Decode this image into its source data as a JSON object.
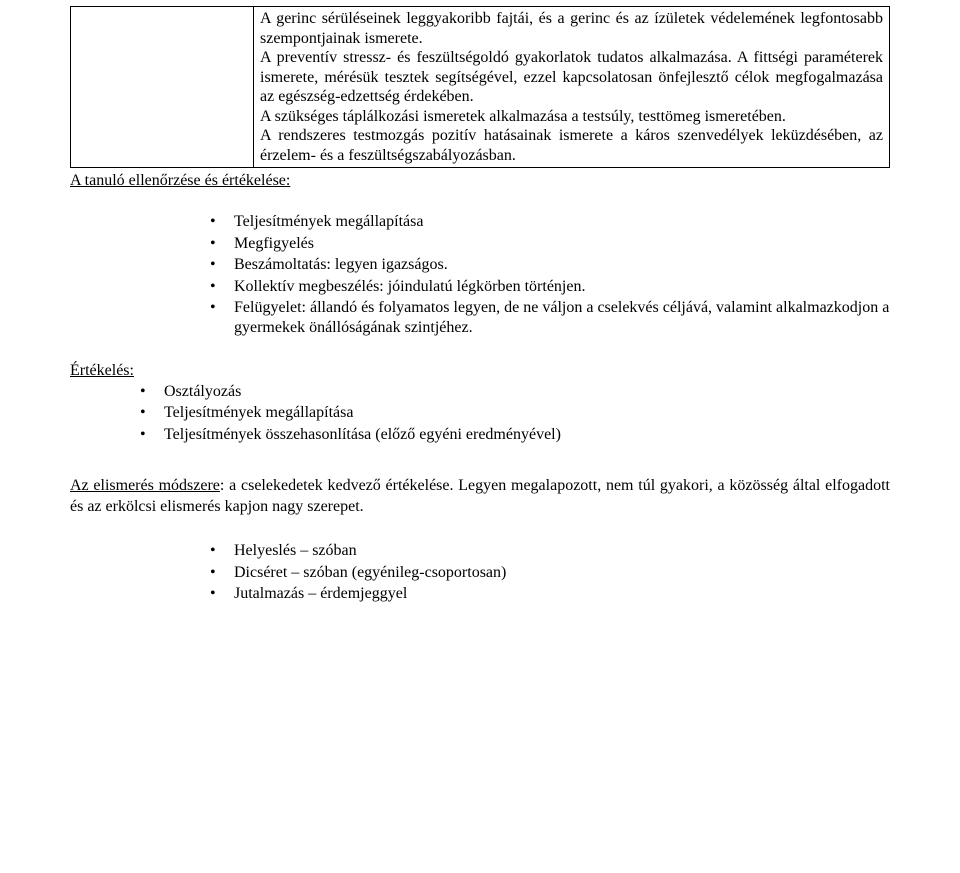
{
  "box": {
    "paragraphs": [
      "A gerinc sérüléseinek leggyakoribb fajtái, és a gerinc és az ízületek védelemének legfontosabb szempontjainak ismerete.",
      "A preventív stressz- és feszültségoldó gyakorlatok tudatos alkalmazása. A fittségi paraméterek ismerete, mérésük tesztek segítségével, ezzel kapcsolatosan önfejlesztő célok megfogalmazása az egészség-edzettség érdekében.",
      "A szükséges táplálkozási ismeretek alkalmazása a testsúly, testtömeg ismeretében.",
      "A rendszeres testmozgás pozitív hatásainak ismerete a káros szenvedélyek leküzdésében, az érzelem- és a feszültségszabályozásban."
    ]
  },
  "heading1": "A tanuló ellenőrzése és értékelése:",
  "list1": [
    "Teljesítmények megállapítása",
    "Megfigyelés",
    "Beszámoltatás: legyen igazságos.",
    "Kollektív megbeszélés: jóindulatú légkörben történjen.",
    "Felügyelet: állandó és folyamatos legyen, de ne váljon a cselekvés céljává, valamint alkalmazkodjon a gyermekek önállóságának szintjéhez."
  ],
  "heading2": "Értékelés:",
  "list2": [
    "Osztályozás",
    "Teljesítmények megállapítása",
    "Teljesítmények összehasonlítása (előző egyéni eredményével)"
  ],
  "para3_pre": "Az elismerés módszere",
  "para3_rest": ": a cselekedetek kedvező értékelése. Legyen megalapozott, nem túl gyakori, a közösség által elfogadott és az erkölcsi elismerés kapjon nagy szerepet.",
  "list3": [
    "Helyeslés – szóban",
    "Dicséret – szóban (egyénileg-csoportosan)",
    "Jutalmazás – érdemjeggyel"
  ]
}
